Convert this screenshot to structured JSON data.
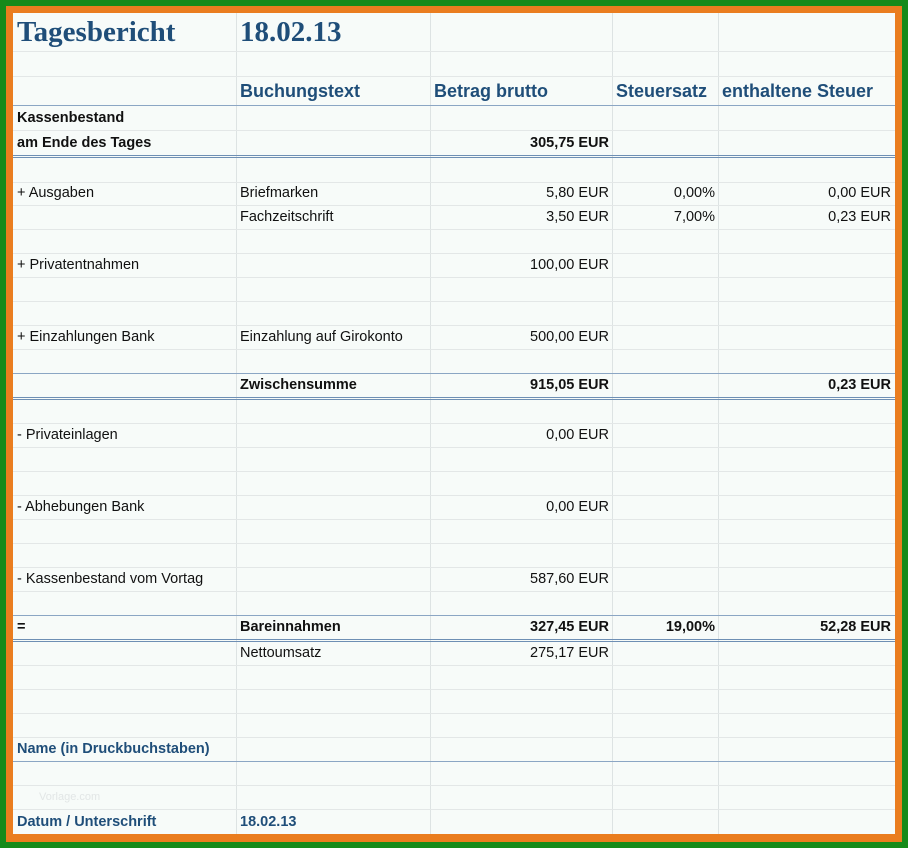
{
  "title": "Tagesbericht",
  "date": "18.02.13",
  "columns": {
    "buchungstext": "Buchungstext",
    "betrag": "Betrag brutto",
    "steuersatz": "Steuersatz",
    "steuer": "enthaltene Steuer"
  },
  "kassenbestand": {
    "label1": "Kassenbestand",
    "label2": "am Ende des Tages",
    "amount": "305,75 EUR"
  },
  "ausgaben": {
    "label": "+ Ausgaben",
    "items": [
      {
        "text": "Briefmarken",
        "amount": "5,80 EUR",
        "rate": "0,00%",
        "tax": "0,00 EUR"
      },
      {
        "text": "Fachzeitschrift",
        "amount": "3,50 EUR",
        "rate": "7,00%",
        "tax": "0,23 EUR"
      }
    ]
  },
  "privatentnahmen": {
    "label": "+ Privatentnahmen",
    "amount": "100,00 EUR"
  },
  "einzahlungen": {
    "label": "+ Einzahlungen Bank",
    "text": "Einzahlung auf Girokonto",
    "amount": "500,00 EUR"
  },
  "zwischensumme": {
    "label": "Zwischensumme",
    "amount": "915,05 EUR",
    "tax": "0,23 EUR"
  },
  "privateinlagen": {
    "label": "- Privateinlagen",
    "amount": "0,00 EUR"
  },
  "abhebungen": {
    "label": "- Abhebungen Bank",
    "amount": "0,00 EUR"
  },
  "vortag": {
    "label": "- Kassenbestand vom Vortag",
    "amount": "587,60 EUR"
  },
  "bareinnahmen": {
    "sign": "=",
    "label": "Bareinnahmen",
    "amount": "327,45 EUR",
    "rate": "19,00%",
    "tax": "52,28 EUR"
  },
  "netto": {
    "label": "Nettoumsatz",
    "amount": "275,17 EUR"
  },
  "name_label": "Name (in Druckbuchstaben)",
  "faint_text": "Vorlage.com",
  "datum": {
    "label": "Datum / Unterschrift",
    "value": "18.02.13"
  }
}
